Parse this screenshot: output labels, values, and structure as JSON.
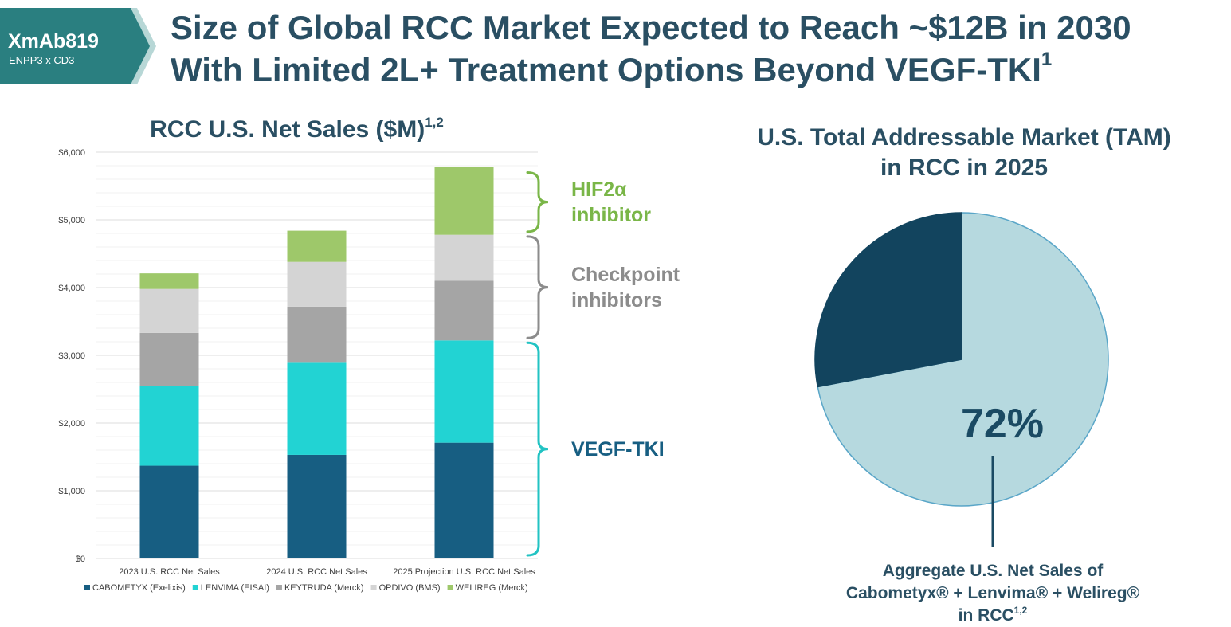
{
  "tag": {
    "title": "XmAb819",
    "subtitle": "ENPP3 x CD3",
    "color": "#2a7f80"
  },
  "header": {
    "line1": "Size of Global RCC Market Expected to Reach ~$12B in 2030",
    "line2": "With Limited 2L+ Treatment Options Beyond VEGF-TKI",
    "line2_sup": "1"
  },
  "chart_data": [
    {
      "type": "bar",
      "stacked": true,
      "title": "RCC U.S. Net Sales ($M)",
      "title_sup": "1,2",
      "categories": [
        "2023 U.S. RCC Net Sales",
        "2024 U.S. RCC Net Sales",
        "2025 Projection U.S. RCC Net Sales"
      ],
      "series": [
        {
          "name": "CABOMETYX (Exelixis)",
          "color": "#175e82",
          "values": [
            1370,
            1530,
            1710
          ]
        },
        {
          "name": "LENVIMA (EISAI)",
          "color": "#22d3d3",
          "values": [
            1180,
            1360,
            1510
          ]
        },
        {
          "name": "KEYTRUDA (Merck)",
          "color": "#a5a5a5",
          "values": [
            780,
            830,
            880
          ]
        },
        {
          "name": "OPDIVO (BMS)",
          "color": "#d4d4d4",
          "values": [
            650,
            660,
            680
          ]
        },
        {
          "name": "WELIREG (Merck)",
          "color": "#9ec86a",
          "values": [
            230,
            460,
            1000
          ]
        }
      ],
      "yticks": [
        "$0",
        "$1,000",
        "$2,000",
        "$3,000",
        "$4,000",
        "$5,000",
        "$6,000"
      ],
      "ylim": [
        0,
        6000
      ],
      "grid": true,
      "legend_position": "bottom",
      "annotations": [
        {
          "text": "HIF2α inhibitor",
          "lines": [
            "HIF2α",
            "inhibitor"
          ],
          "color": "#7ab648",
          "range": [
            4790,
            5700
          ]
        },
        {
          "text": "Checkpoint inhibitors",
          "lines": [
            "Checkpoint",
            "inhibitors"
          ],
          "color": "#8c8c8c",
          "range": [
            3220,
            4790
          ]
        },
        {
          "text": "VEGF-TKI",
          "lines": [
            "VEGF-TKI"
          ],
          "color": "#175e82",
          "bracket_color": "#22c3c3",
          "range": [
            0,
            3220
          ]
        }
      ]
    },
    {
      "type": "pie",
      "title_lines": [
        "U.S. Total Addressable Market (TAM)",
        "in RCC in 2025"
      ],
      "slices": [
        {
          "label": "Aggregate U.S. Net Sales of Cabometyx® + Lenvima® + Welireg® in RCC",
          "value": 72,
          "color": "#b6d9df"
        },
        {
          "label": "",
          "value": 28,
          "color": "#12445e"
        }
      ],
      "value_label": "72%",
      "caption_lines": [
        "Aggregate U.S. Net Sales of",
        "Cabometyx® + Lenvima® + Welireg®",
        "in RCC"
      ],
      "caption_sup": "1,2"
    }
  ]
}
